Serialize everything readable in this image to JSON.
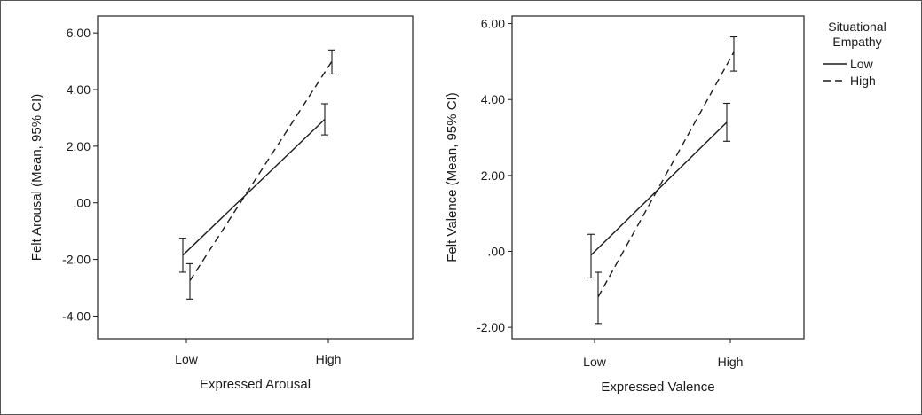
{
  "chart_data": [
    {
      "type": "line",
      "xlabel": "Expressed Arousal",
      "ylabel": "Felt Arousal (Mean, 95% CI)",
      "categories": [
        "Low",
        "High"
      ],
      "ylim": [
        -4.8,
        6.6
      ],
      "yticks": [
        6.0,
        4.0,
        2.0,
        0.0,
        -2.0,
        -4.0
      ],
      "ytick_labels": [
        "6.00",
        "4.00",
        "2.00",
        ".00",
        "-2.00",
        "-4.00"
      ],
      "series": [
        {
          "name": "Low",
          "style": "solid",
          "values": [
            -1.85,
            2.95
          ],
          "ci_low": [
            -2.45,
            2.4
          ],
          "ci_high": [
            -1.25,
            3.5
          ]
        },
        {
          "name": "High",
          "style": "dashed",
          "values": [
            -2.75,
            5.0
          ],
          "ci_low": [
            -3.4,
            4.55
          ],
          "ci_high": [
            -2.15,
            5.4
          ]
        }
      ]
    },
    {
      "type": "line",
      "xlabel": "Expressed Valence",
      "ylabel": "Felt Valence (Mean, 95% CI)",
      "categories": [
        "Low",
        "High"
      ],
      "ylim": [
        -2.3,
        6.2
      ],
      "yticks": [
        6.0,
        4.0,
        2.0,
        0.0,
        -2.0
      ],
      "ytick_labels": [
        "6.00",
        "4.00",
        "2.00",
        ".00",
        "-2.00"
      ],
      "series": [
        {
          "name": "Low",
          "style": "solid",
          "values": [
            -0.1,
            3.4
          ],
          "ci_low": [
            -0.7,
            2.9
          ],
          "ci_high": [
            0.45,
            3.9
          ]
        },
        {
          "name": "High",
          "style": "dashed",
          "values": [
            -1.2,
            5.25
          ],
          "ci_low": [
            -1.9,
            4.75
          ],
          "ci_high": [
            -0.55,
            5.65
          ]
        }
      ]
    }
  ],
  "legend": {
    "title_line1": "Situational",
    "title_line2": "Empathy",
    "entries": [
      {
        "label": "Low",
        "style": "solid"
      },
      {
        "label": "High",
        "style": "dashed"
      }
    ]
  },
  "colors": {
    "line": "#1a1a1a",
    "frame": "#222222",
    "background": "#ffffff"
  }
}
